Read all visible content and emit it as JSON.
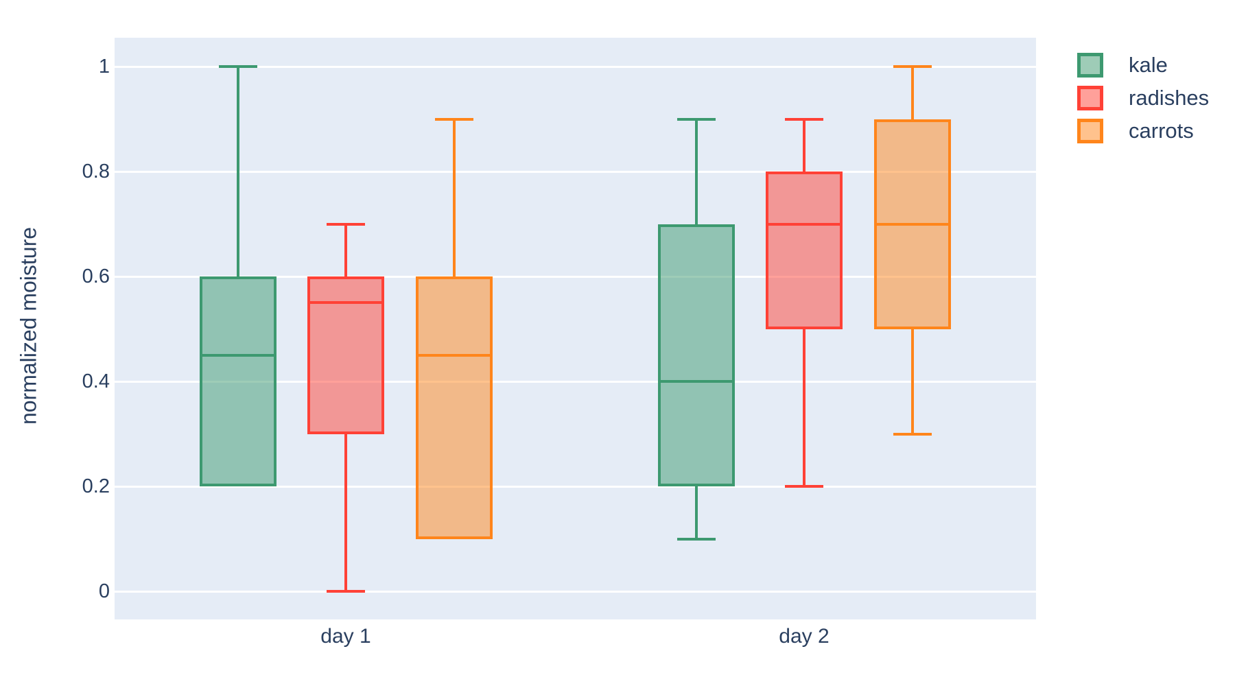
{
  "chart_data": {
    "type": "box",
    "title": "",
    "xlabel": "",
    "ylabel": "normalized moisture",
    "categories": [
      "day 1",
      "day 2"
    ],
    "yticks": [
      0,
      0.2,
      0.4,
      0.6,
      0.8,
      1
    ],
    "ytick_labels": [
      "0",
      "0.2",
      "0.4",
      "0.6",
      "0.8",
      "1"
    ],
    "ylim": [
      -0.054,
      1.055
    ],
    "grid": true,
    "legend_position": "outside-top-right",
    "colors": {
      "plot_background": "#e5ecf6",
      "gridline": "#ffffff",
      "text": "#2a3f5f"
    },
    "series": [
      {
        "name": "kale",
        "line_color": "#3D9970",
        "fill_color": "rgba(61,153,112,0.5)",
        "boxes": [
          {
            "category": "day 1",
            "min": 0.2,
            "q1": 0.2,
            "median": 0.45,
            "q3": 0.6,
            "max": 1.0
          },
          {
            "category": "day 2",
            "min": 0.1,
            "q1": 0.2,
            "median": 0.4,
            "q3": 0.7,
            "max": 0.9
          }
        ]
      },
      {
        "name": "radishes",
        "line_color": "#FF4136",
        "fill_color": "rgba(255,65,54,0.5)",
        "boxes": [
          {
            "category": "day 1",
            "min": 0.0,
            "q1": 0.3,
            "median": 0.55,
            "q3": 0.6,
            "max": 0.7
          },
          {
            "category": "day 2",
            "min": 0.2,
            "q1": 0.5,
            "median": 0.7,
            "q3": 0.8,
            "max": 0.9
          }
        ]
      },
      {
        "name": "carrots",
        "line_color": "#FF851B",
        "fill_color": "rgba(255,133,27,0.5)",
        "boxes": [
          {
            "category": "day 1",
            "min": 0.1,
            "q1": 0.1,
            "median": 0.45,
            "q3": 0.6,
            "max": 0.9
          },
          {
            "category": "day 2",
            "min": 0.3,
            "q1": 0.5,
            "median": 0.7,
            "q3": 0.9,
            "max": 1.0
          }
        ]
      }
    ]
  }
}
